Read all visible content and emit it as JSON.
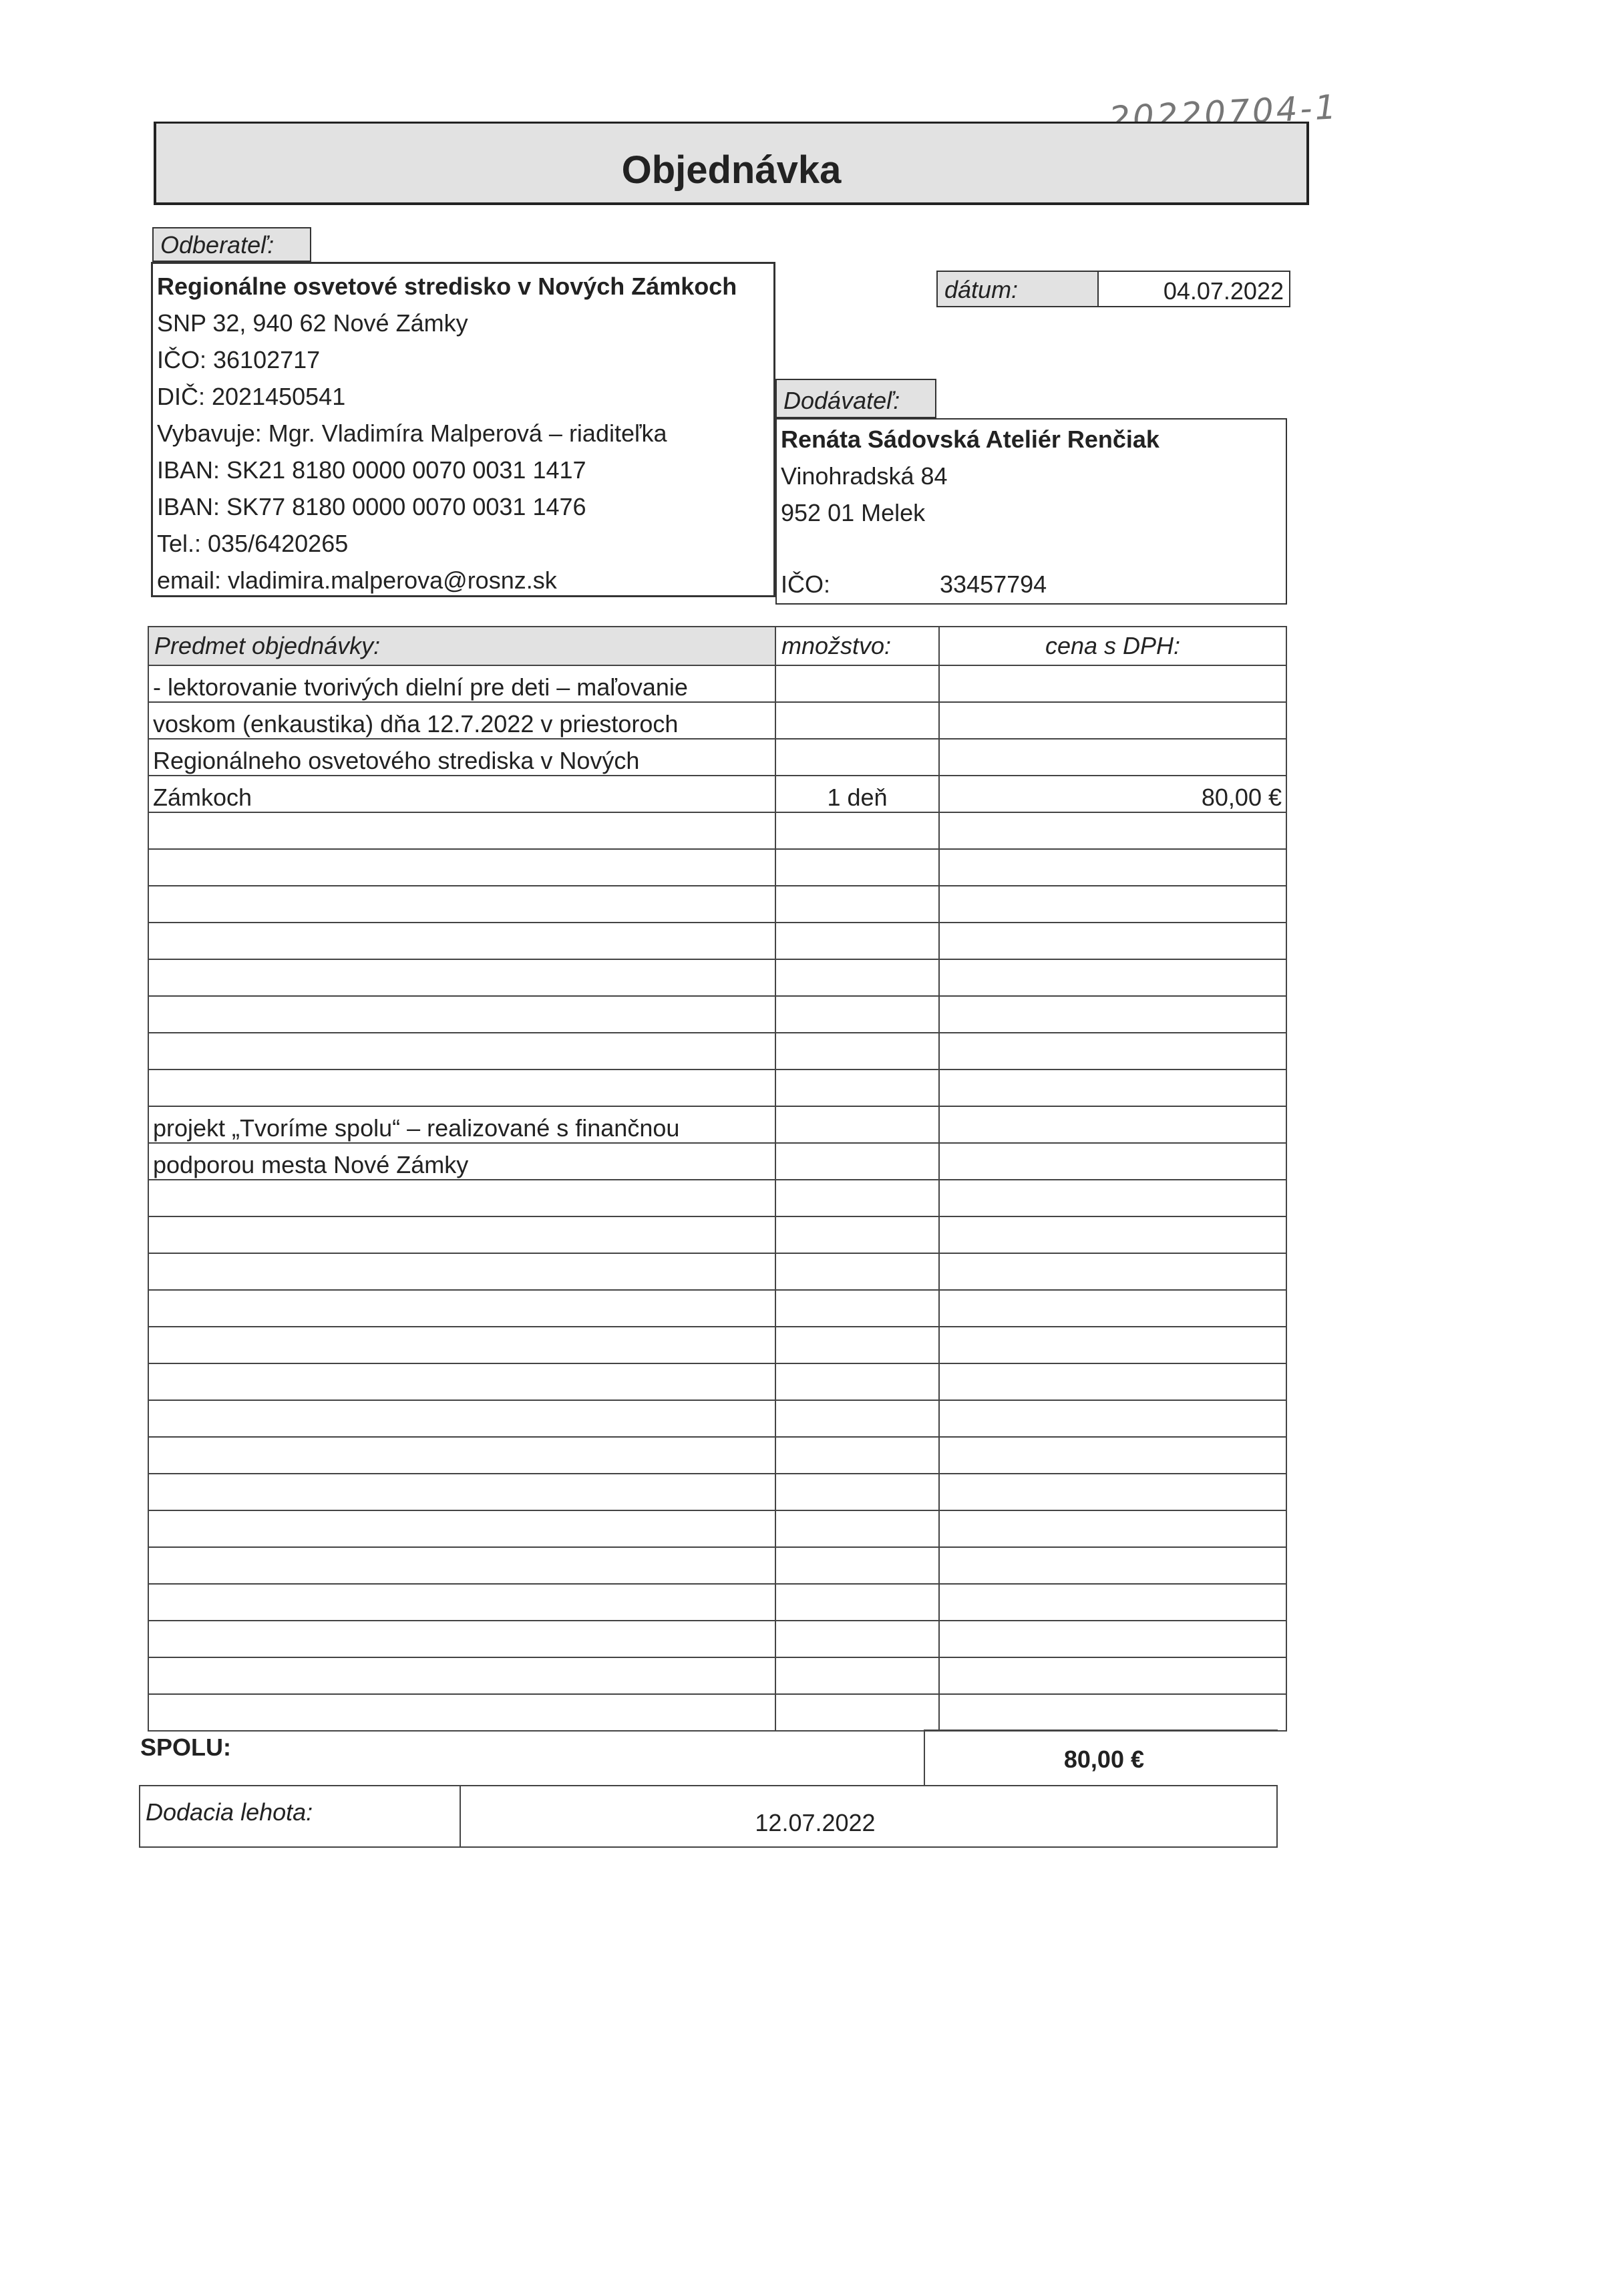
{
  "handwritten_note": "20220704-1",
  "title": "Objednávka",
  "buyer": {
    "label": "Odberateľ:",
    "name": "Regionálne osvetové stredisko v Nových Zámkoch",
    "lines": [
      "SNP 32, 940 62  Nové Zámky",
      "IČO: 36102717",
      "DIČ: 2021450541",
      "Vybavuje: Mgr. Vladimíra Malperová – riaditeľka",
      "IBAN: SK21 8180 0000 0070 0031 1417",
      "IBAN: SK77 8180 0000 0070 0031 1476",
      "Tel.: 035/6420265",
      "email: vladimira.malperova@rosnz.sk"
    ]
  },
  "date": {
    "label": "dátum:",
    "value": "04.07.2022"
  },
  "supplier": {
    "label": "Dodávateľ:",
    "name": "Renáta Sádovská Ateliér Renčiak",
    "street": "Vinohradská 84",
    "city": "952 01  Melek",
    "ico_label": "IČO:",
    "ico": "33457794"
  },
  "items_table": {
    "headers": [
      "Predmet objednávky:",
      "množstvo:",
      "cena s DPH:"
    ],
    "rows": [
      [
        "- lektorovanie tvorivých dielní pre deti – maľovanie",
        "",
        ""
      ],
      [
        "voskom (enkaustika) dňa 12.7.2022 v priestoroch",
        "",
        ""
      ],
      [
        "Regionálneho osvetového strediska v Nových",
        "",
        ""
      ],
      [
        "Zámkoch",
        "1 deň",
        "80,00 €"
      ],
      [
        "",
        "",
        ""
      ],
      [
        "",
        "",
        ""
      ],
      [
        "",
        "",
        ""
      ],
      [
        "",
        "",
        ""
      ],
      [
        "",
        "",
        ""
      ],
      [
        "",
        "",
        ""
      ],
      [
        "",
        "",
        ""
      ],
      [
        "",
        "",
        ""
      ],
      [
        "projekt „Tvoríme spolu“ – realizované s finančnou",
        "",
        ""
      ],
      [
        "podporou mesta Nové Zámky",
        "",
        ""
      ],
      [
        "",
        "",
        ""
      ],
      [
        "",
        "",
        ""
      ],
      [
        "",
        "",
        ""
      ],
      [
        "",
        "",
        ""
      ],
      [
        "",
        "",
        ""
      ],
      [
        "",
        "",
        ""
      ],
      [
        "",
        "",
        ""
      ],
      [
        "",
        "",
        ""
      ],
      [
        "",
        "",
        ""
      ],
      [
        "",
        "",
        ""
      ],
      [
        "",
        "",
        ""
      ],
      [
        "",
        "",
        ""
      ],
      [
        "",
        "",
        ""
      ],
      [
        "",
        "",
        ""
      ],
      [
        "",
        "",
        ""
      ]
    ]
  },
  "total": {
    "label": "SPOLU:",
    "value": "80,00 €"
  },
  "delivery": {
    "label": "Dodacia lehota:",
    "value": "12.07.2022"
  }
}
